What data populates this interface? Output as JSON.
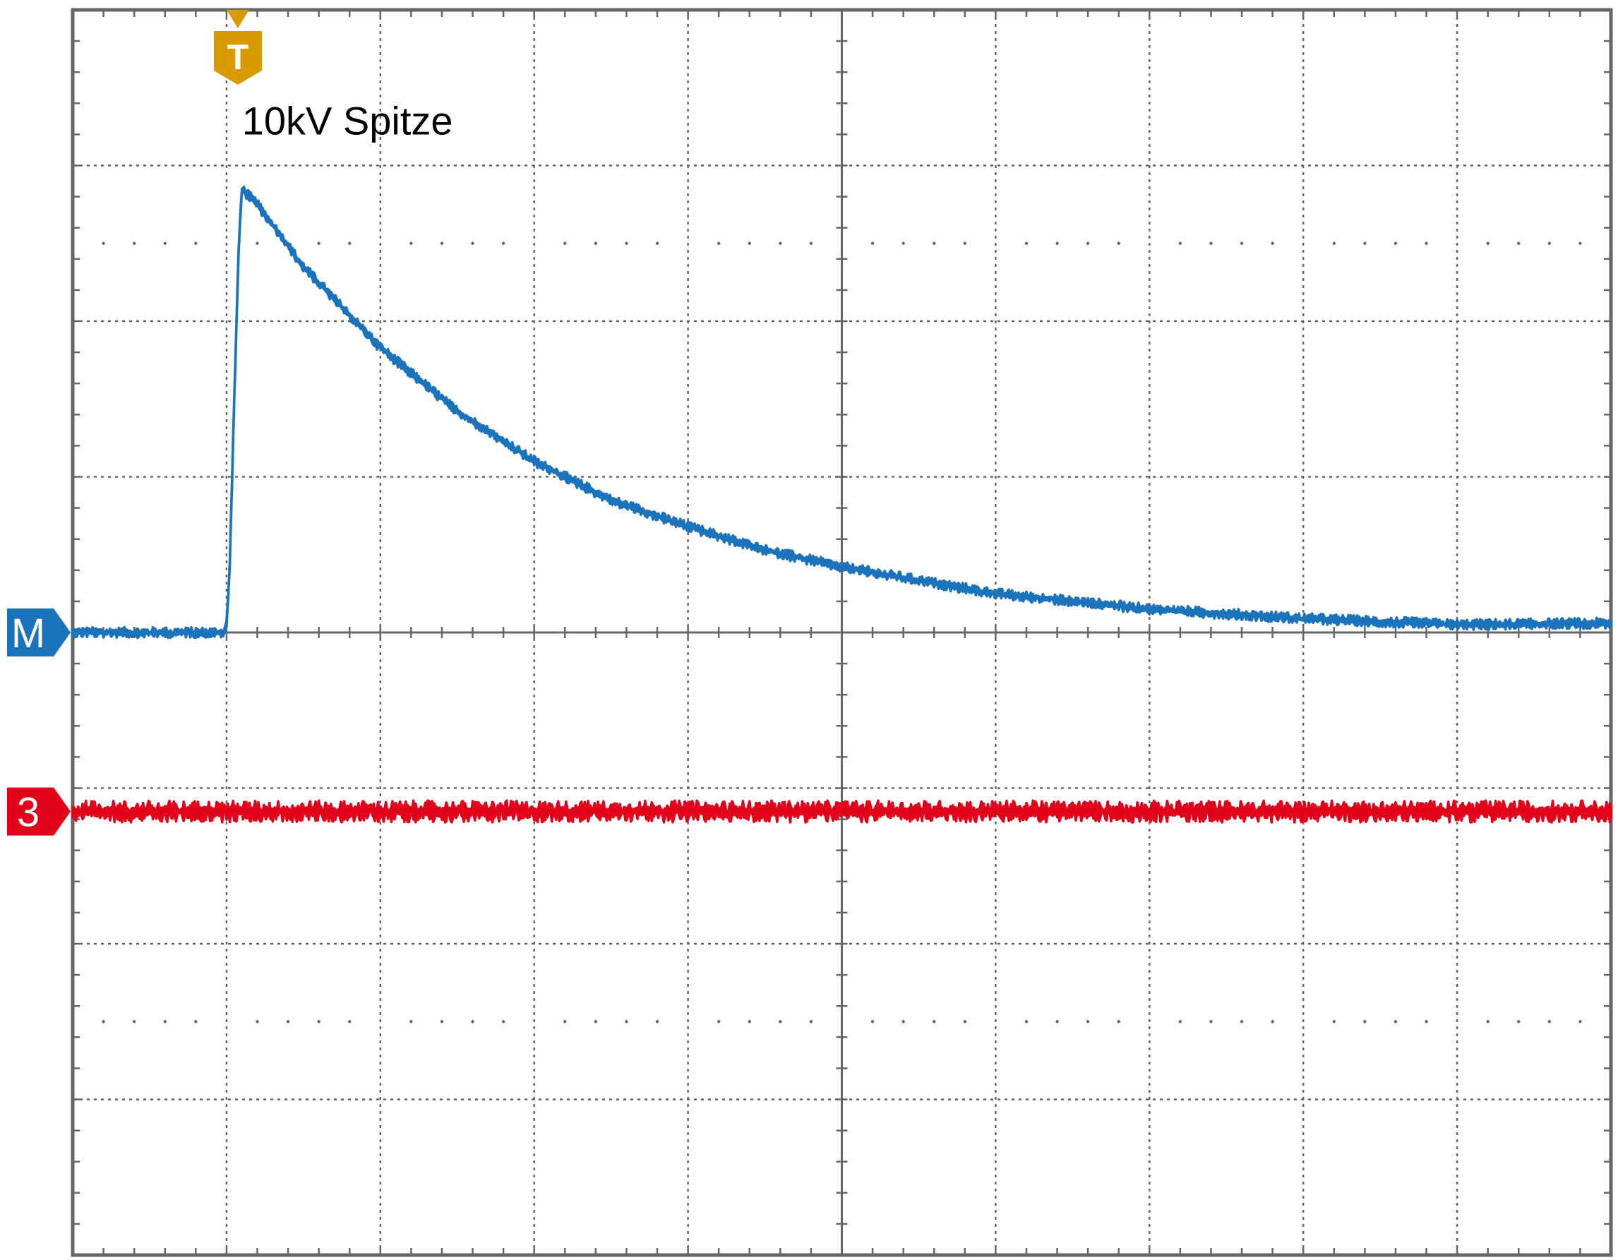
{
  "chart_data": {
    "type": "line",
    "title": "",
    "xlabel": "",
    "ylabel": "",
    "grid": true,
    "grid_divisions": {
      "x": 10,
      "y": 8
    },
    "xlim": [
      0,
      10
    ],
    "ylim": [
      -4,
      4
    ],
    "annotation": {
      "text": "10kV Spitze",
      "x": 1.1,
      "y": 3.2
    },
    "trigger": {
      "label": "T",
      "x": 1.0,
      "color": "#d99a00"
    },
    "series": [
      {
        "marker_label": "M",
        "color": "#1a73bb",
        "baseline_div": 0,
        "noise_div": 0.05,
        "x": [
          0,
          0.5,
          0.98,
          1.0,
          1.02,
          1.05,
          1.08,
          1.1,
          1.15,
          1.2,
          1.5,
          2.0,
          2.5,
          3.0,
          3.5,
          4.0,
          4.5,
          5.0,
          6.0,
          7.0,
          8.0,
          9.0,
          10.0
        ],
        "values": [
          0,
          0,
          0,
          0.05,
          0.4,
          1.5,
          2.5,
          2.85,
          2.8,
          2.75,
          2.35,
          1.83,
          1.42,
          1.1,
          0.85,
          0.68,
          0.53,
          0.42,
          0.25,
          0.15,
          0.09,
          0.05,
          0.06
        ]
      },
      {
        "marker_label": "3",
        "color": "#e3001b",
        "baseline_div": -1.15,
        "noise_div": 0.1,
        "x": [
          0,
          10
        ],
        "values": [
          -1.15,
          -1.15
        ]
      }
    ]
  }
}
